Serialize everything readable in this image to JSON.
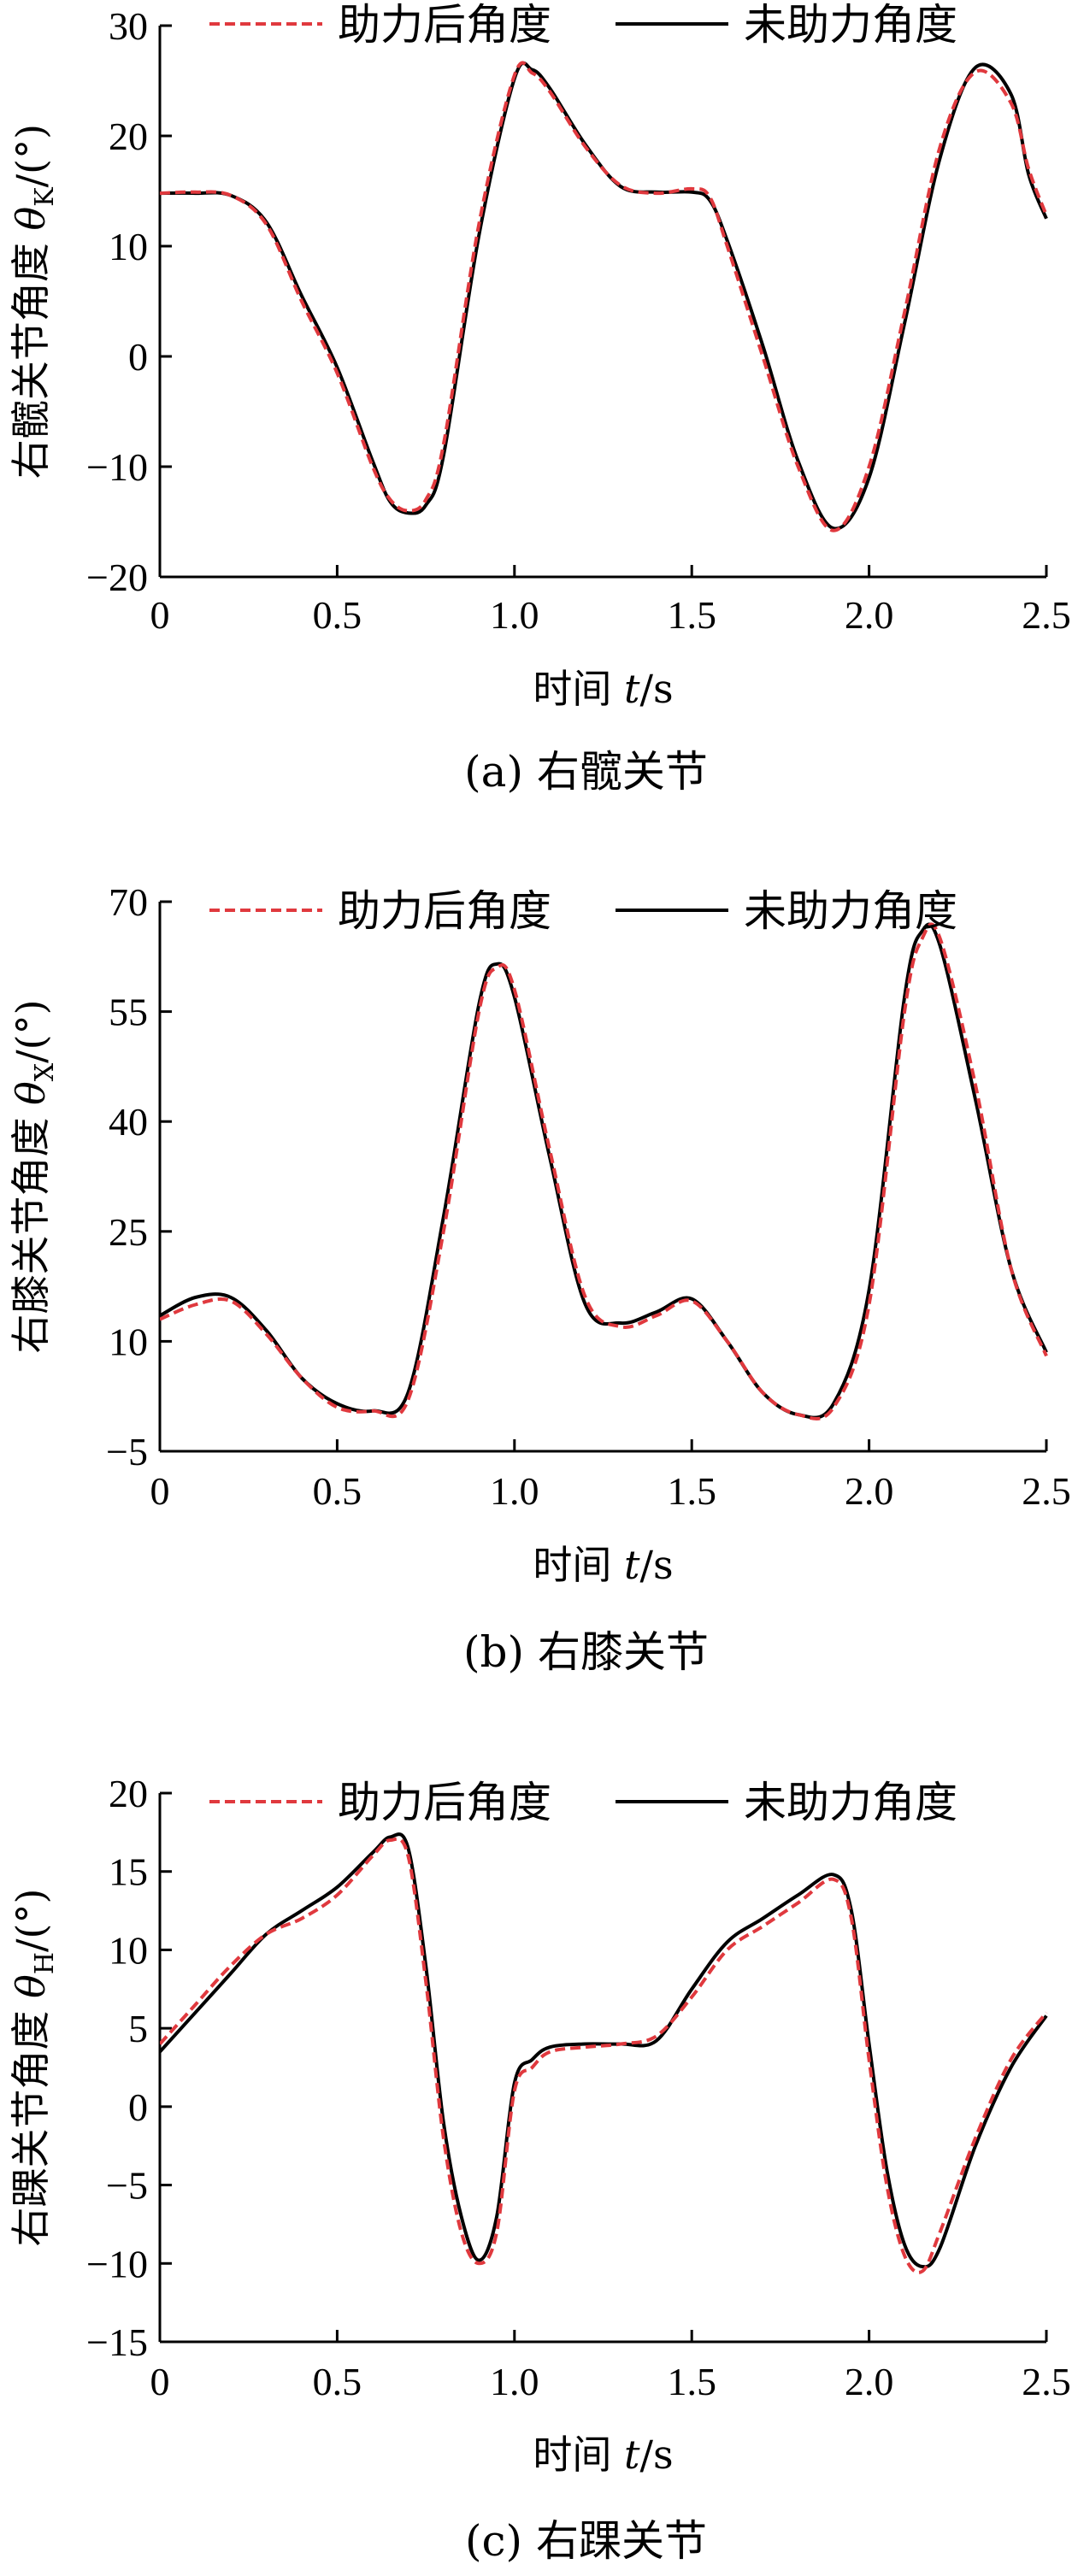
{
  "chart_data": [
    {
      "type": "line",
      "ylabel": "右髋关节角度 θK/(°)",
      "ylabel_main": "右髋关节角度 ",
      "ylabel_sym": "θ",
      "ylabel_sub": "K",
      "ylabel_unit": "/(°)",
      "xlabel": "时间 t/s",
      "xlabel_main": "时间 ",
      "xlabel_var": "t",
      "xlabel_unit": "/s",
      "caption": "(a) 右髋关节",
      "xlim": [
        0,
        2.5
      ],
      "ylim": [
        -20,
        30
      ],
      "xticks": [
        "0",
        "0.5",
        "1.0",
        "1.5",
        "2.0",
        "2.5"
      ],
      "yticks": [
        "−20",
        "−10",
        "0",
        "10",
        "20",
        "30"
      ],
      "ytick_values": [
        -20,
        -10,
        0,
        10,
        20,
        30
      ],
      "legend_position": "top",
      "series": [
        {
          "name": "助力后角度",
          "color": "#e0393e",
          "style": "dashed",
          "x": [
            0,
            0.1,
            0.2,
            0.3,
            0.4,
            0.5,
            0.6,
            0.65,
            0.7,
            0.75,
            0.8,
            0.9,
            1.0,
            1.05,
            1.1,
            1.2,
            1.3,
            1.4,
            1.5,
            1.55,
            1.6,
            1.7,
            1.8,
            1.9,
            2.0,
            2.1,
            2.2,
            2.3,
            2.4,
            2.45,
            2.5
          ],
          "y": [
            14.8,
            14.9,
            14.6,
            12,
            5,
            -1.5,
            -10,
            -13,
            -14,
            -13,
            -8,
            12,
            25.5,
            25.7,
            24,
            19,
            15.5,
            14.8,
            15.2,
            14.5,
            10,
            0,
            -10,
            -15.8,
            -10,
            4,
            19,
            25.8,
            23,
            17,
            12.8
          ]
        },
        {
          "name": "未助力角度",
          "color": "#000000",
          "style": "solid",
          "x": [
            0,
            0.1,
            0.2,
            0.3,
            0.4,
            0.5,
            0.6,
            0.65,
            0.7,
            0.75,
            0.8,
            0.9,
            1.0,
            1.05,
            1.1,
            1.2,
            1.3,
            1.4,
            1.5,
            1.55,
            1.6,
            1.7,
            1.8,
            1.9,
            2.0,
            2.1,
            2.2,
            2.3,
            2.4,
            2.45,
            2.5
          ],
          "y": [
            14.8,
            14.8,
            14.6,
            12.2,
            5.5,
            -1,
            -9.5,
            -13.2,
            -14.2,
            -13.5,
            -9,
            11,
            25.2,
            26,
            24.3,
            19.2,
            15.4,
            14.9,
            14.9,
            14.2,
            10.5,
            1,
            -9.5,
            -15.6,
            -11,
            3,
            18,
            26.2,
            23.8,
            16.5,
            12.5
          ]
        }
      ]
    },
    {
      "type": "line",
      "ylabel": "右膝关节角度 θX/(°)",
      "ylabel_main": "右膝关节角度 ",
      "ylabel_sym": "θ",
      "ylabel_sub": "X",
      "ylabel_unit": "/(°)",
      "xlabel": "时间 t/s",
      "xlabel_main": "时间 ",
      "xlabel_var": "t",
      "xlabel_unit": "/s",
      "caption": "(b) 右膝关节",
      "xlim": [
        0,
        2.5
      ],
      "ylim": [
        -5,
        70
      ],
      "xticks": [
        "0",
        "0.5",
        "1.0",
        "1.5",
        "2.0",
        "2.5"
      ],
      "yticks": [
        "−5",
        "10",
        "25",
        "40",
        "55",
        "70"
      ],
      "ytick_values": [
        -5,
        10,
        25,
        40,
        55,
        70
      ],
      "legend_position": "top",
      "series": [
        {
          "name": "助力后角度",
          "color": "#e0393e",
          "style": "dashed",
          "x": [
            0,
            0.1,
            0.2,
            0.3,
            0.4,
            0.5,
            0.6,
            0.7,
            0.8,
            0.9,
            0.95,
            1.0,
            1.1,
            1.2,
            1.3,
            1.4,
            1.5,
            1.6,
            1.7,
            1.8,
            1.9,
            2.0,
            2.1,
            2.15,
            2.2,
            2.3,
            2.4,
            2.5
          ],
          "y": [
            13,
            15,
            15.5,
            11,
            5,
            1,
            0.5,
            2,
            25,
            55,
            61,
            58,
            36,
            16,
            12,
            13.5,
            15.5,
            10,
            3,
            0,
            1,
            15,
            55,
            65,
            65,
            45,
            20,
            8
          ]
        },
        {
          "name": "未助力角度",
          "color": "#000000",
          "style": "solid",
          "x": [
            0,
            0.1,
            0.2,
            0.3,
            0.4,
            0.5,
            0.6,
            0.7,
            0.8,
            0.9,
            0.95,
            1.0,
            1.1,
            1.2,
            1.3,
            1.4,
            1.5,
            1.6,
            1.7,
            1.8,
            1.9,
            2.0,
            2.1,
            2.15,
            2.2,
            2.3,
            2.4,
            2.5
          ],
          "y": [
            13.5,
            16,
            16,
            11.5,
            5,
            1.5,
            0.5,
            3,
            27,
            56,
            61.5,
            57,
            35,
            15,
            12.5,
            14,
            15.8,
            10,
            3,
            0,
            1.5,
            17,
            57,
            66,
            64,
            43,
            20,
            8.5
          ]
        }
      ]
    },
    {
      "type": "line",
      "ylabel": "右踝关节角度 θH/(°)",
      "ylabel_main": "右踝关节角度 ",
      "ylabel_sym": "θ",
      "ylabel_sub": "H",
      "ylabel_unit": "/(°)",
      "xlabel": "时间 t/s",
      "xlabel_main": "时间 ",
      "xlabel_var": "t",
      "xlabel_unit": "/s",
      "caption": "(c) 右踝关节",
      "xlim": [
        0,
        2.5
      ],
      "ylim": [
        -15,
        20
      ],
      "xticks": [
        "0",
        "0.5",
        "1.0",
        "1.5",
        "2.0",
        "2.5"
      ],
      "yticks": [
        "−15",
        "−10",
        "−5",
        "0",
        "5",
        "10",
        "15",
        "20"
      ],
      "ytick_values": [
        -15,
        -10,
        -5,
        0,
        5,
        10,
        15,
        20
      ],
      "legend_position": "top",
      "series": [
        {
          "name": "助力后角度",
          "color": "#e0393e",
          "style": "dashed",
          "x": [
            0,
            0.1,
            0.2,
            0.3,
            0.4,
            0.5,
            0.6,
            0.65,
            0.7,
            0.75,
            0.8,
            0.85,
            0.9,
            0.95,
            1.0,
            1.05,
            1.1,
            1.2,
            1.3,
            1.4,
            1.5,
            1.6,
            1.7,
            1.8,
            1.9,
            1.95,
            2.0,
            2.05,
            2.1,
            2.15,
            2.2,
            2.3,
            2.4,
            2.5
          ],
          "y": [
            4,
            6.5,
            9,
            11,
            12,
            13.5,
            16,
            17,
            16,
            8,
            -2,
            -8,
            -10,
            -8,
            1,
            2.5,
            3.5,
            3.8,
            4,
            4.5,
            7,
            10,
            11.5,
            13,
            14.5,
            12,
            3,
            -5,
            -9.5,
            -10.5,
            -8,
            -2,
            3,
            6
          ]
        },
        {
          "name": "未助力角度",
          "color": "#000000",
          "style": "solid",
          "x": [
            0,
            0.1,
            0.2,
            0.3,
            0.4,
            0.5,
            0.6,
            0.65,
            0.7,
            0.75,
            0.8,
            0.85,
            0.9,
            0.95,
            1.0,
            1.05,
            1.1,
            1.2,
            1.3,
            1.4,
            1.5,
            1.6,
            1.7,
            1.8,
            1.9,
            1.95,
            2.0,
            2.05,
            2.1,
            2.15,
            2.2,
            2.3,
            2.4,
            2.5
          ],
          "y": [
            3.5,
            6,
            8.5,
            11,
            12.5,
            14,
            16.2,
            17.2,
            16.5,
            9,
            -1,
            -7,
            -9.8,
            -7,
            1.5,
            3,
            3.8,
            4,
            4,
            4.2,
            7.5,
            10.5,
            12,
            13.5,
            14.8,
            12.5,
            4,
            -4,
            -8.8,
            -10.2,
            -9,
            -2.5,
            2.5,
            5.8
          ]
        }
      ]
    }
  ]
}
